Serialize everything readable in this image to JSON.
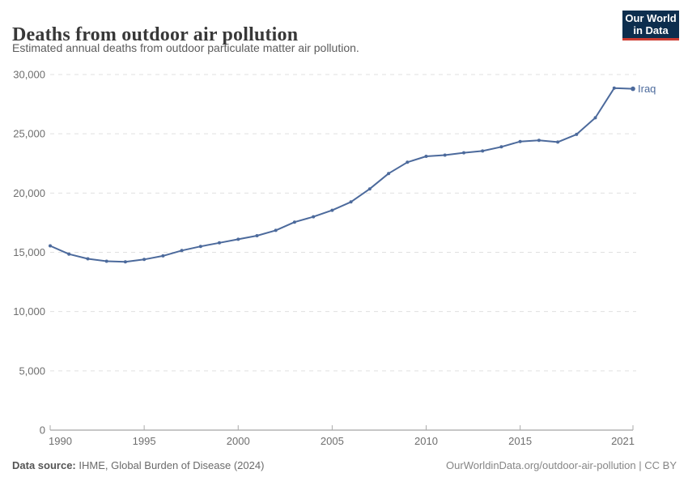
{
  "header": {
    "title": "Deaths from outdoor air pollution",
    "subtitle": "Estimated annual deaths from outdoor particulate matter air pollution.",
    "logo": {
      "line1": "Our World",
      "line2": "in Data"
    }
  },
  "chart_data": {
    "type": "line",
    "title": "Deaths from outdoor air pollution",
    "xlabel": "",
    "ylabel": "",
    "x": [
      1990,
      1991,
      1992,
      1993,
      1994,
      1995,
      1996,
      1997,
      1998,
      1999,
      2000,
      2001,
      2002,
      2003,
      2004,
      2005,
      2006,
      2007,
      2008,
      2009,
      2010,
      2011,
      2012,
      2013,
      2014,
      2015,
      2016,
      2017,
      2018,
      2019,
      2020,
      2021
    ],
    "series": [
      {
        "name": "Iraq",
        "color": "#4c6a9c",
        "values": [
          15550,
          14850,
          14450,
          14250,
          14200,
          14400,
          14700,
          15150,
          15500,
          15800,
          16100,
          16400,
          16850,
          17550,
          18000,
          18550,
          19250,
          20350,
          21650,
          22600,
          23100,
          23200,
          23400,
          23550,
          23900,
          24350,
          24450,
          24300,
          24950,
          26350,
          28850,
          28800
        ]
      }
    ],
    "ylim": [
      0,
      30000
    ],
    "yticks": [
      0,
      5000,
      10000,
      15000,
      20000,
      25000,
      30000
    ],
    "ytick_labels": [
      "0",
      "5,000",
      "10,000",
      "15,000",
      "20,000",
      "25,000",
      "30,000"
    ],
    "xticks": [
      1990,
      1995,
      2000,
      2005,
      2010,
      2015,
      2021
    ],
    "grid": "horizontal-dashed",
    "legend_position": "end-of-line-label"
  },
  "footer": {
    "source_label": "Data source:",
    "source_text": " IHME, Global Burden of Disease (2024)",
    "url": "OurWorldinData.org/outdoor-air-pollution",
    "license": " | CC BY"
  },
  "colors": {
    "line": "#4c6a9c",
    "gridline": "#e0e0e0",
    "axis": "#8f8f8f",
    "tick_text": "#6e6e6e",
    "logo_bg": "#0d2e4e",
    "logo_accent": "#cc3b31"
  }
}
